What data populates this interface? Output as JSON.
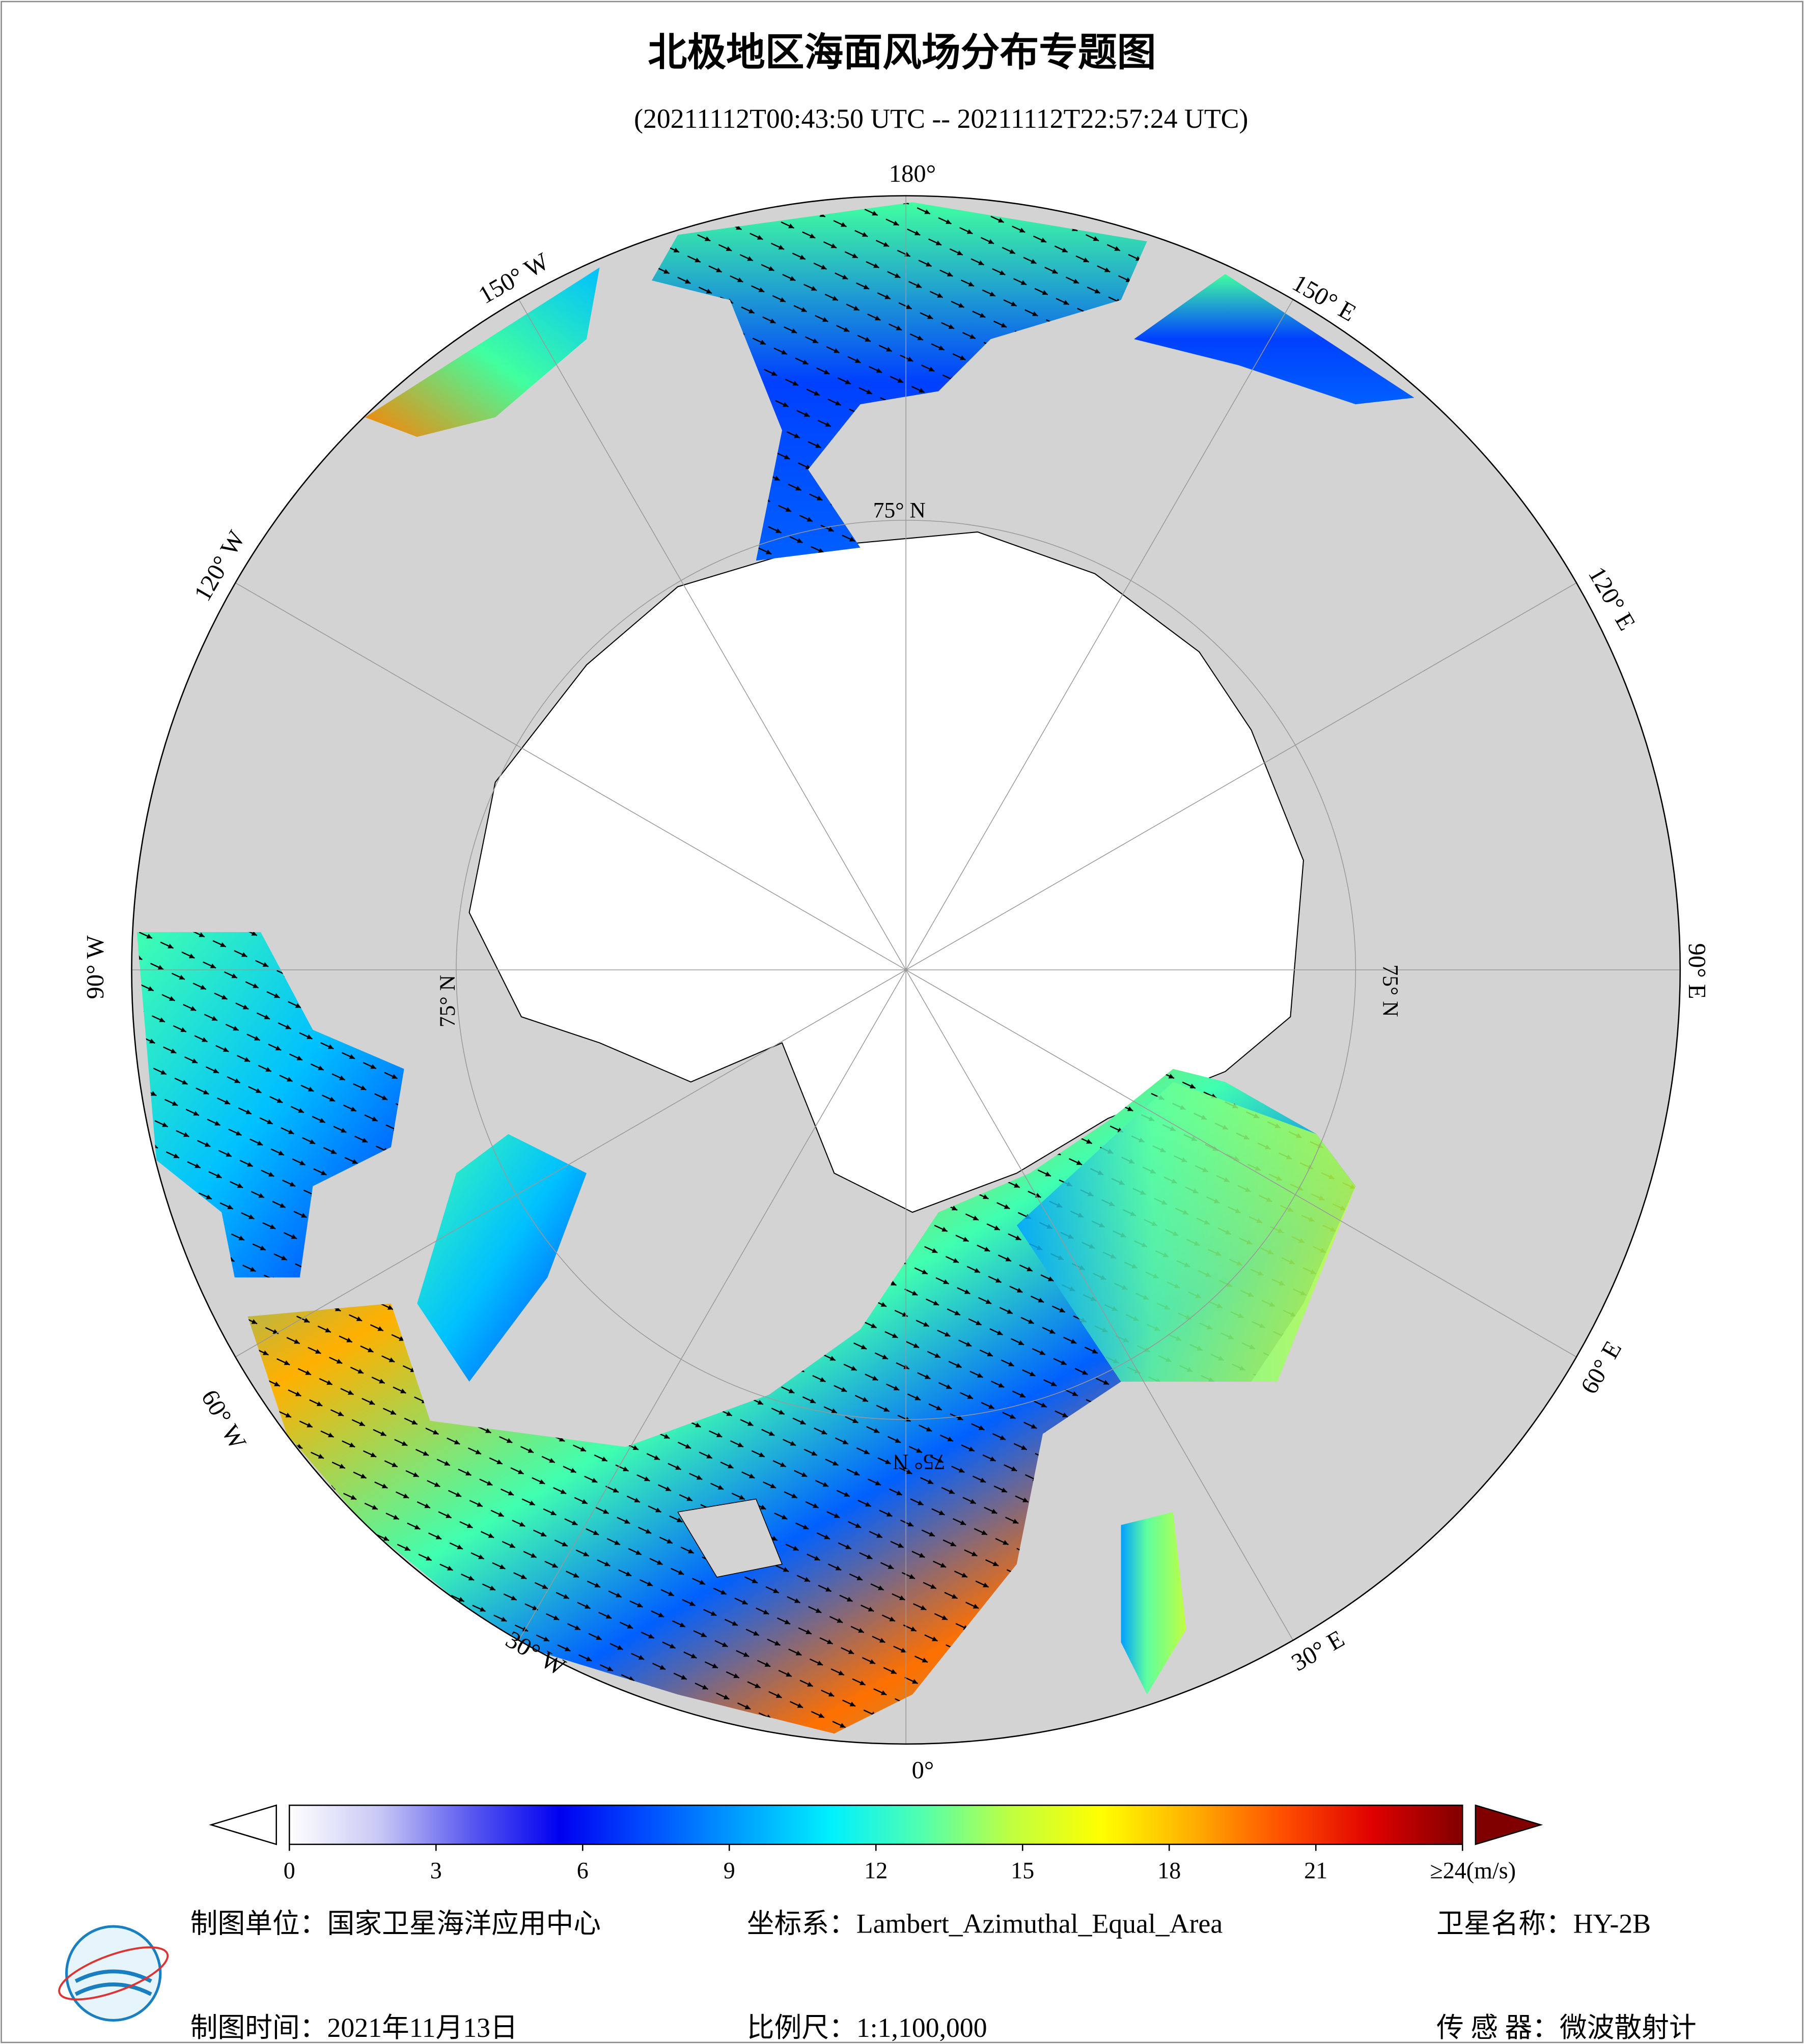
{
  "title": "北极地区海面风场分布专题图",
  "subtitle": "(20211112T00:43:50 UTC -- 20211112T22:57:24 UTC)",
  "map": {
    "longitude_labels": [
      "180°",
      "150° W",
      "150° E",
      "120° W",
      "120° E",
      "90° W",
      "90° E",
      "60° W",
      "60° E",
      "30° W",
      "30° E",
      "0°"
    ],
    "latitude_label": "75° N"
  },
  "colorbar": {
    "lim": [
      0,
      24
    ],
    "ticks": [
      0,
      3,
      6,
      9,
      12,
      15,
      18,
      21,
      {
        "value": 24,
        "label": "≥24(m/s)"
      }
    ],
    "colors": [
      "#ffffff",
      "#c8c8f5",
      "#5a5af0",
      "#0000f0",
      "#0050ff",
      "#00a0ff",
      "#00f0ff",
      "#50ffb0",
      "#c0ff40",
      "#ffff00",
      "#ffb000",
      "#ff5000",
      "#e00000",
      "#800000"
    ]
  },
  "footer": {
    "unit": "制图单位：国家卫星海洋应用中心",
    "coordinate_system": "坐标系：Lambert_Azimuthal_Equal_Area",
    "satellite": "卫星名称：HY-2B",
    "date": "制图时间：2021年11月13日",
    "scale": "比例尺：1:1,100,000",
    "sensor": "传 感 器：微波散射计"
  }
}
